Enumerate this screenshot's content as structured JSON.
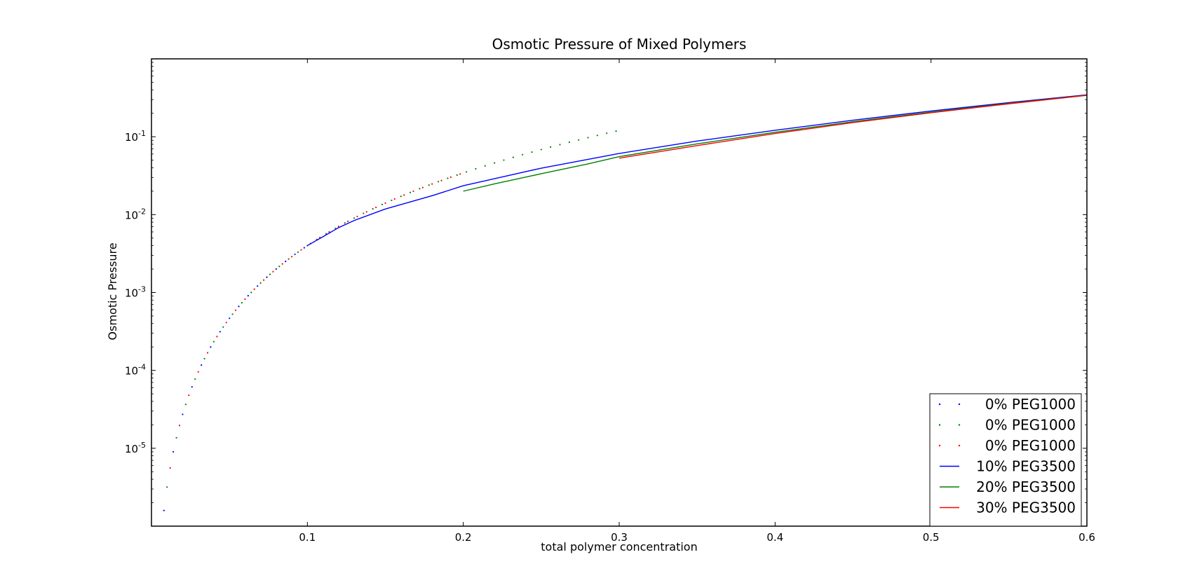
{
  "chart_data": {
    "type": "line",
    "title": "Osmotic Pressure of Mixed Polymers",
    "xlabel": "total polymer concentration",
    "ylabel": "Osmotic Pressure",
    "xlim": [
      0.0,
      0.6
    ],
    "ylim_log10": [
      -6.0,
      0.0
    ],
    "yscale": "log",
    "grid": false,
    "legend_position": "lower-right",
    "x_ticks": [
      {
        "value": 0.1,
        "label": "0.1"
      },
      {
        "value": 0.2,
        "label": "0.2"
      },
      {
        "value": 0.3,
        "label": "0.3"
      },
      {
        "value": 0.4,
        "label": "0.4"
      },
      {
        "value": 0.5,
        "label": "0.5"
      },
      {
        "value": 0.6,
        "label": "0.6"
      }
    ],
    "y_ticks": [
      {
        "exp": -5,
        "base": "10",
        "sup": "-5"
      },
      {
        "exp": -4,
        "base": "10",
        "sup": "-4"
      },
      {
        "exp": -3,
        "base": "10",
        "sup": "-3"
      },
      {
        "exp": -2,
        "base": "10",
        "sup": "-2"
      },
      {
        "exp": -1,
        "base": "10",
        "sup": "-1"
      }
    ],
    "series": [
      {
        "name": "0% PEG1000",
        "color": "#0000ff",
        "style": "dots",
        "x_range": [
          0.002,
          0.1
        ],
        "power": 3.1,
        "y_at_0_1": 0.004
      },
      {
        "name": "0% PEG1000",
        "color": "#008000",
        "style": "dots",
        "x_range": [
          0.004,
          0.3
        ],
        "power": 3.1,
        "y_at_0_1": 0.004
      },
      {
        "name": "0% PEG1000",
        "color": "#ff0000",
        "style": "dots",
        "x_range": [
          0.006,
          0.2
        ],
        "power": 3.1,
        "y_at_0_1": 0.004
      },
      {
        "name": "10% PEG3500",
        "color": "#0000ff",
        "style": "line",
        "points": [
          [
            0.1,
            0.004
          ],
          [
            0.11,
            0.0052
          ],
          [
            0.12,
            0.0068
          ],
          [
            0.13,
            0.0084
          ],
          [
            0.15,
            0.0118
          ],
          [
            0.18,
            0.0175
          ],
          [
            0.2,
            0.0235
          ],
          [
            0.25,
            0.0395
          ],
          [
            0.3,
            0.061
          ],
          [
            0.35,
            0.088
          ],
          [
            0.4,
            0.121
          ],
          [
            0.45,
            0.163
          ],
          [
            0.5,
            0.214
          ],
          [
            0.55,
            0.274
          ],
          [
            0.6,
            0.345
          ]
        ]
      },
      {
        "name": "20% PEG3500",
        "color": "#008000",
        "style": "line",
        "points": [
          [
            0.2,
            0.02
          ],
          [
            0.22,
            0.0248
          ],
          [
            0.25,
            0.0335
          ],
          [
            0.28,
            0.0448
          ],
          [
            0.3,
            0.0555
          ],
          [
            0.35,
            0.081
          ],
          [
            0.4,
            0.114
          ],
          [
            0.45,
            0.156
          ],
          [
            0.5,
            0.207
          ],
          [
            0.55,
            0.269
          ],
          [
            0.6,
            0.342
          ]
        ]
      },
      {
        "name": "30% PEG3500",
        "color": "#ff0000",
        "style": "line",
        "points": [
          [
            0.3,
            0.053
          ],
          [
            0.35,
            0.077
          ],
          [
            0.4,
            0.11
          ],
          [
            0.45,
            0.152
          ],
          [
            0.5,
            0.203
          ],
          [
            0.55,
            0.265
          ],
          [
            0.6,
            0.34
          ]
        ]
      }
    ]
  }
}
